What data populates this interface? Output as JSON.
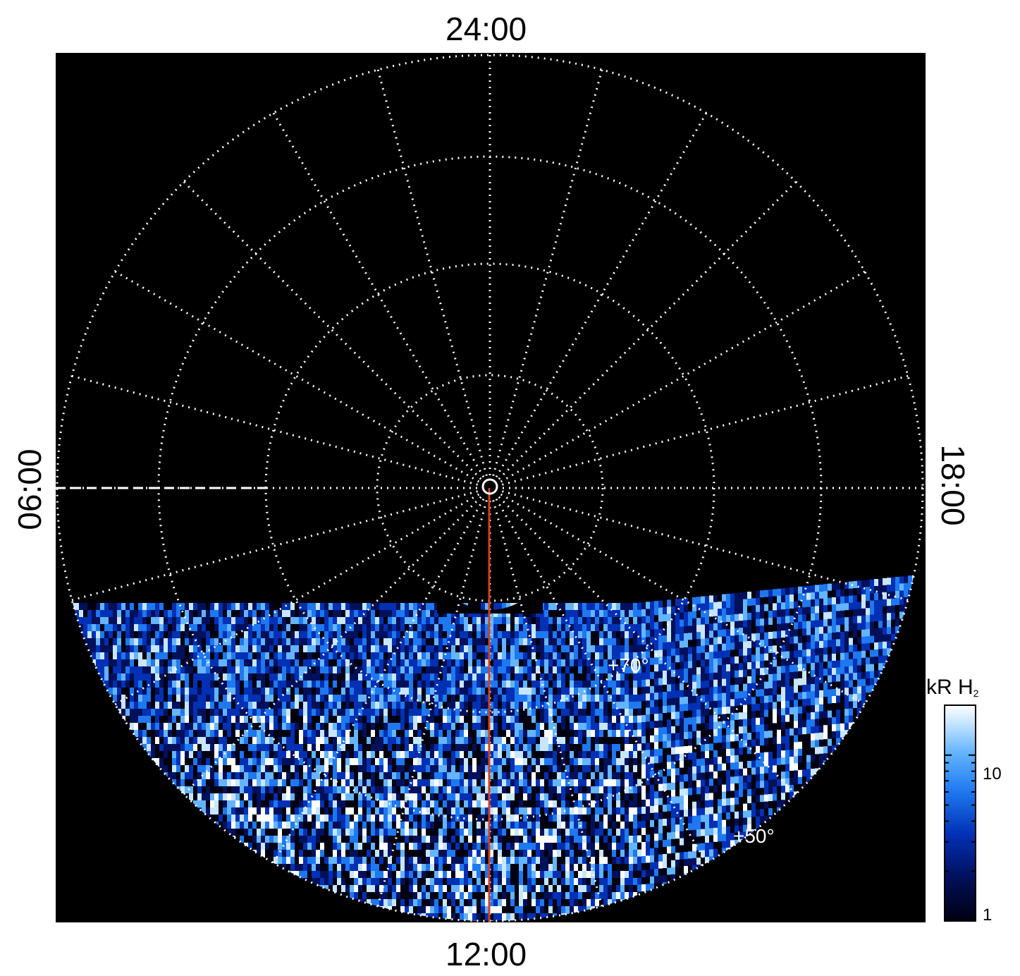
{
  "local_time_labels": {
    "top": "24:00",
    "bottom": "12:00",
    "left": "06:00",
    "right": "18:00"
  },
  "latitude_labels": {
    "inner": "+70°",
    "outer": "+50°"
  },
  "colorbar": {
    "title": "kR H",
    "title_subscript": "2",
    "ticks": [
      "10",
      "1"
    ],
    "scale": "log",
    "range": [
      1,
      20
    ],
    "colors": [
      "#000010",
      "#00105a",
      "#0030b4",
      "#1e78f0",
      "#64b4ff",
      "#c8e6ff",
      "#ffffff"
    ]
  },
  "colors": {
    "background": "#000000",
    "grid": "#ffffff",
    "noon_line": "#d2401e"
  },
  "grid": {
    "parallels_lines": "dotted",
    "meridian_step_hours": 1,
    "pole_marker": "circle"
  }
}
